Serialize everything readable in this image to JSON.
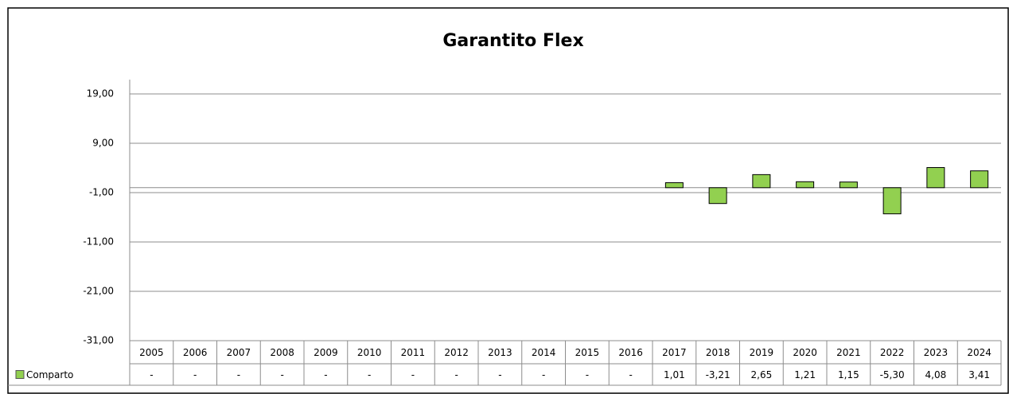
{
  "chart_data": {
    "type": "bar",
    "title": "Garantito Flex",
    "categories": [
      "2005",
      "2006",
      "2007",
      "2008",
      "2009",
      "2010",
      "2011",
      "2012",
      "2013",
      "2014",
      "2015",
      "2016",
      "2017",
      "2018",
      "2019",
      "2020",
      "2021",
      "2022",
      "2023",
      "2024"
    ],
    "series": [
      {
        "name": "Comparto",
        "color": "#92d050",
        "values": [
          null,
          null,
          null,
          null,
          null,
          null,
          null,
          null,
          null,
          null,
          null,
          null,
          1.01,
          -3.21,
          2.65,
          1.21,
          1.15,
          -5.3,
          4.08,
          3.41
        ],
        "value_labels": [
          "-",
          "-",
          "-",
          "-",
          "-",
          "-",
          "-",
          "-",
          "-",
          "-",
          "-",
          "-",
          "1,01",
          "-3,21",
          "2,65",
          "1,21",
          "1,15",
          "-5,30",
          "4,08",
          "3,41"
        ]
      }
    ],
    "ylim": [
      -31,
      19
    ],
    "yticks": [
      {
        "value": -31,
        "label": "-31,00"
      },
      {
        "value": -21,
        "label": "-21,00"
      },
      {
        "value": -11,
        "label": "-11,00"
      },
      {
        "value": -1,
        "label": "-1,00"
      },
      {
        "value": 9,
        "label": "9,00"
      },
      {
        "value": 19,
        "label": "19,00"
      }
    ],
    "grid": true
  }
}
